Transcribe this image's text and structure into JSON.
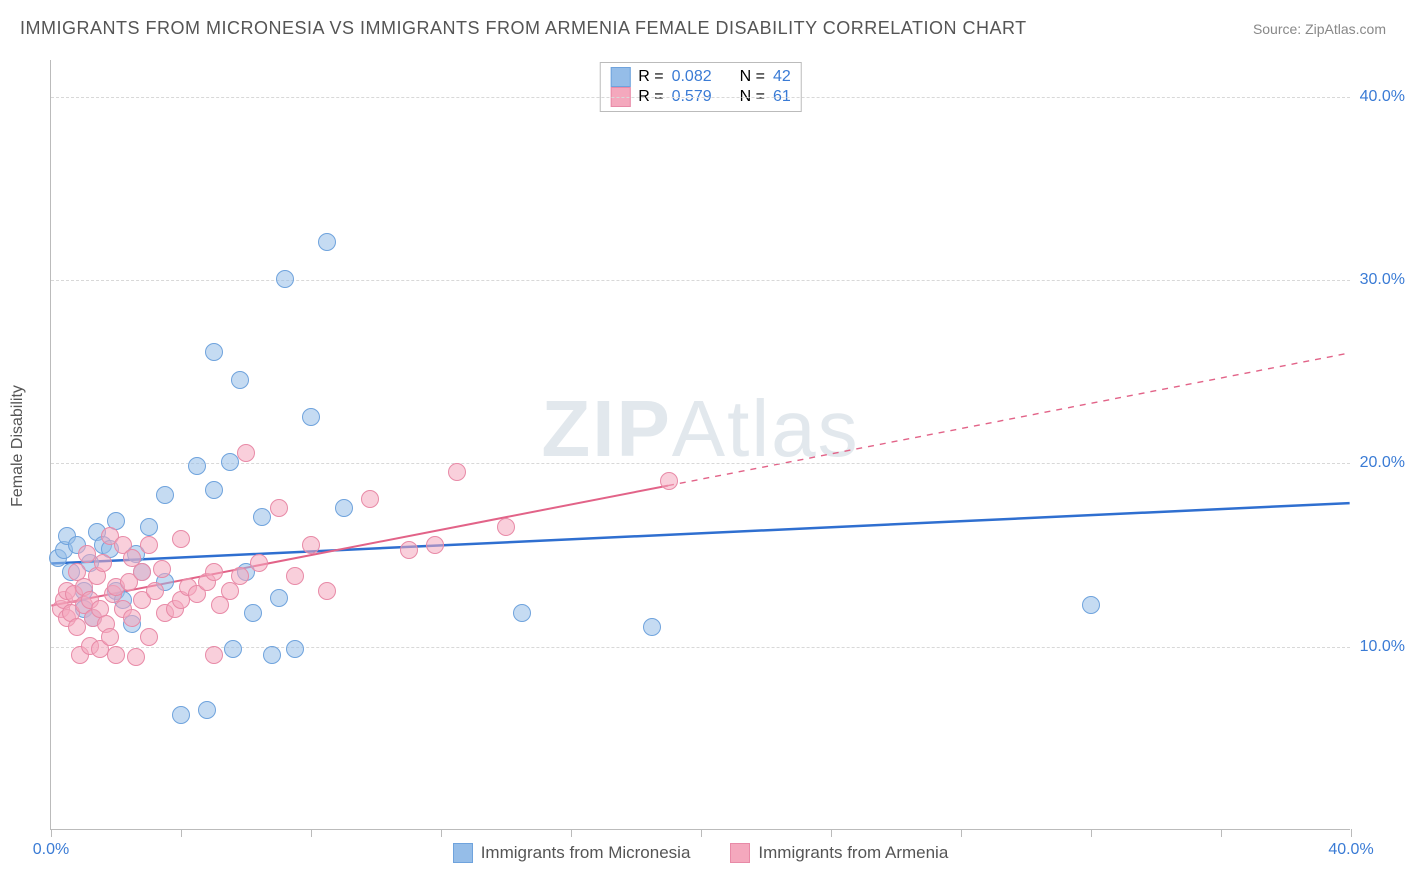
{
  "title": "IMMIGRANTS FROM MICRONESIA VS IMMIGRANTS FROM ARMENIA FEMALE DISABILITY CORRELATION CHART",
  "source": "Source: ZipAtlas.com",
  "watermark_a": "ZIP",
  "watermark_b": "Atlas",
  "ylabel": "Female Disability",
  "chart": {
    "type": "scatter",
    "xlim": [
      0,
      40
    ],
    "ylim": [
      0,
      42
    ],
    "xtick_positions": [
      0,
      4,
      8,
      12,
      16,
      20,
      24,
      28,
      32,
      36,
      40
    ],
    "xtick_labels": {
      "0": "0.0%",
      "40": "40.0%"
    },
    "ytick_positions": [
      10,
      20,
      30,
      40
    ],
    "ytick_labels": {
      "10": "10.0%",
      "20": "20.0%",
      "30": "30.0%",
      "40": "40.0%"
    },
    "grid_color": "#d8d8d8",
    "background_color": "#ffffff",
    "label_fontsize": 16,
    "title_fontsize": 18,
    "marker_radius": 9,
    "series": [
      {
        "name": "Immigrants from Micronesia",
        "color_fill": "#95bde8",
        "color_stroke": "#6fa3dd",
        "R": "0.082",
        "N": "42",
        "trend": {
          "x1": 0,
          "y1": 14.5,
          "x2": 40,
          "y2": 17.8,
          "solid_until_x": 40,
          "color": "#2f6fd0",
          "width": 2.5
        },
        "points": [
          [
            0.2,
            14.8
          ],
          [
            0.4,
            15.2
          ],
          [
            0.5,
            16.0
          ],
          [
            0.6,
            14.0
          ],
          [
            0.8,
            15.5
          ],
          [
            1.0,
            13.0
          ],
          [
            1.0,
            12.0
          ],
          [
            1.2,
            14.5
          ],
          [
            1.3,
            11.5
          ],
          [
            1.4,
            16.2
          ],
          [
            1.6,
            15.5
          ],
          [
            1.8,
            15.3
          ],
          [
            2.0,
            13.0
          ],
          [
            2.0,
            16.8
          ],
          [
            2.2,
            12.5
          ],
          [
            2.5,
            11.2
          ],
          [
            2.6,
            15.0
          ],
          [
            2.8,
            14.0
          ],
          [
            3.0,
            16.5
          ],
          [
            3.5,
            18.2
          ],
          [
            3.5,
            13.5
          ],
          [
            4.0,
            6.2
          ],
          [
            4.5,
            19.8
          ],
          [
            4.8,
            6.5
          ],
          [
            5.0,
            18.5
          ],
          [
            5.0,
            26.0
          ],
          [
            5.5,
            20.0
          ],
          [
            5.6,
            9.8
          ],
          [
            5.8,
            24.5
          ],
          [
            6.0,
            14.0
          ],
          [
            6.2,
            11.8
          ],
          [
            6.5,
            17.0
          ],
          [
            6.8,
            9.5
          ],
          [
            7.0,
            12.6
          ],
          [
            7.2,
            30.0
          ],
          [
            7.5,
            9.8
          ],
          [
            8.0,
            22.5
          ],
          [
            8.5,
            32.0
          ],
          [
            9.0,
            17.5
          ],
          [
            14.5,
            11.8
          ],
          [
            18.5,
            11.0
          ],
          [
            32.0,
            12.2
          ]
        ]
      },
      {
        "name": "Immigrants from Armenia",
        "color_fill": "#f4a8bd",
        "color_stroke": "#e88aa7",
        "R": "0.579",
        "N": "61",
        "trend": {
          "x1": 0,
          "y1": 12.2,
          "x2": 40,
          "y2": 26.0,
          "solid_until_x": 19,
          "color": "#e26388",
          "width": 2
        },
        "points": [
          [
            0.3,
            12.0
          ],
          [
            0.4,
            12.5
          ],
          [
            0.5,
            11.5
          ],
          [
            0.5,
            13.0
          ],
          [
            0.6,
            11.8
          ],
          [
            0.7,
            12.8
          ],
          [
            0.8,
            14.0
          ],
          [
            0.8,
            11.0
          ],
          [
            0.9,
            9.5
          ],
          [
            1.0,
            12.2
          ],
          [
            1.0,
            13.2
          ],
          [
            1.1,
            15.0
          ],
          [
            1.2,
            10.0
          ],
          [
            1.2,
            12.5
          ],
          [
            1.3,
            11.5
          ],
          [
            1.4,
            13.8
          ],
          [
            1.5,
            9.8
          ],
          [
            1.5,
            12.0
          ],
          [
            1.6,
            14.5
          ],
          [
            1.7,
            11.2
          ],
          [
            1.8,
            16.0
          ],
          [
            1.8,
            10.5
          ],
          [
            1.9,
            12.8
          ],
          [
            2.0,
            13.2
          ],
          [
            2.0,
            9.5
          ],
          [
            2.2,
            12.0
          ],
          [
            2.2,
            15.5
          ],
          [
            2.4,
            13.5
          ],
          [
            2.5,
            11.5
          ],
          [
            2.5,
            14.8
          ],
          [
            2.6,
            9.4
          ],
          [
            2.8,
            12.5
          ],
          [
            2.8,
            14.0
          ],
          [
            3.0,
            15.5
          ],
          [
            3.0,
            10.5
          ],
          [
            3.2,
            13.0
          ],
          [
            3.4,
            14.2
          ],
          [
            3.5,
            11.8
          ],
          [
            3.8,
            12.0
          ],
          [
            4.0,
            12.5
          ],
          [
            4.0,
            15.8
          ],
          [
            4.2,
            13.2
          ],
          [
            4.5,
            12.8
          ],
          [
            4.8,
            13.5
          ],
          [
            5.0,
            9.5
          ],
          [
            5.0,
            14.0
          ],
          [
            5.2,
            12.2
          ],
          [
            5.5,
            13.0
          ],
          [
            5.8,
            13.8
          ],
          [
            6.0,
            20.5
          ],
          [
            6.4,
            14.5
          ],
          [
            7.0,
            17.5
          ],
          [
            7.5,
            13.8
          ],
          [
            8.0,
            15.5
          ],
          [
            8.5,
            13.0
          ],
          [
            9.8,
            18.0
          ],
          [
            11.0,
            15.2
          ],
          [
            11.8,
            15.5
          ],
          [
            12.5,
            19.5
          ],
          [
            14.0,
            16.5
          ],
          [
            19.0,
            19.0
          ]
        ]
      }
    ]
  },
  "legend_top": {
    "r_label": "R =",
    "n_label": "N ="
  }
}
